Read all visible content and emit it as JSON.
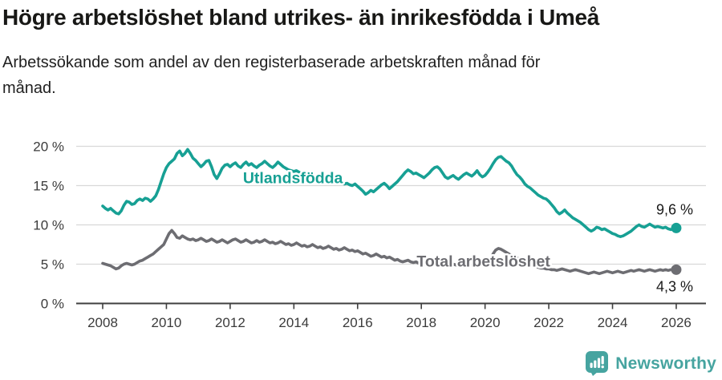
{
  "header": {
    "title": "Högre arbetslöshet bland utrikes- än inrikesfödda i Umeå",
    "subtitle_lines": [
      "Arbetssökande som andel av den registerbaserade arbetskraften månad för",
      "månad."
    ]
  },
  "chart_data": {
    "type": "line",
    "title": "Högre arbetslöshet bland utrikes- än inrikesfödda i Umeå",
    "subtitle": "Arbetssökande som andel av den registerbaserade arbetskraften månad för månad.",
    "x_unit": "month",
    "x_start_year": 2008,
    "x_end_year": 2026,
    "x_tick_years": [
      2008,
      2010,
      2012,
      2014,
      2016,
      2018,
      2020,
      2022,
      2024,
      2026
    ],
    "y_ticks": [
      0,
      5,
      10,
      15,
      20
    ],
    "y_suffix": " %",
    "ylim": [
      0,
      21.5
    ],
    "grid": "horizontal",
    "axis_color": "#3f3f3f",
    "grid_color": "#d8d8d8",
    "tick_label_color": "#3b3b3b",
    "value_label_color": "#1a1a1a",
    "series": [
      {
        "name": "Utlandsfödda",
        "color": "#17a094",
        "end_label": "9,6 %",
        "end_value": 9.6,
        "end_label_side": "above",
        "label_anchor": {
          "year": 2013.97,
          "value": 15.3
        },
        "values": [
          12.4,
          12.1,
          11.9,
          12.1,
          11.8,
          11.5,
          11.4,
          11.8,
          12.5,
          13.0,
          12.9,
          12.6,
          12.7,
          13.1,
          13.3,
          13.1,
          13.4,
          13.3,
          13.0,
          13.3,
          13.7,
          14.5,
          15.5,
          16.5,
          17.3,
          17.8,
          18.1,
          18.4,
          19.1,
          19.4,
          18.8,
          19.1,
          19.6,
          19.1,
          18.5,
          18.2,
          17.8,
          17.4,
          17.7,
          18.1,
          18.2,
          17.4,
          16.4,
          15.9,
          16.5,
          17.2,
          17.6,
          17.7,
          17.4,
          17.7,
          17.9,
          17.5,
          17.3,
          17.7,
          18.0,
          17.6,
          17.8,
          17.5,
          17.3,
          17.6,
          17.8,
          18.1,
          17.8,
          17.5,
          17.3,
          17.6,
          18.0,
          17.7,
          17.4,
          17.2,
          17.0,
          16.9,
          16.8,
          16.9,
          16.7,
          16.5,
          16.6,
          16.4,
          16.2,
          16.3,
          16.1,
          16.0,
          15.9,
          15.8,
          15.7,
          15.8,
          15.6,
          15.5,
          15.6,
          15.4,
          15.3,
          15.2,
          15.3,
          15.1,
          15.0,
          15.2,
          14.9,
          14.6,
          14.3,
          13.9,
          14.1,
          14.4,
          14.2,
          14.5,
          14.8,
          15.1,
          15.3,
          15.0,
          14.6,
          14.9,
          15.2,
          15.5,
          15.9,
          16.3,
          16.7,
          17.0,
          16.8,
          16.5,
          16.6,
          16.4,
          16.2,
          16.0,
          16.3,
          16.6,
          17.0,
          17.3,
          17.4,
          17.1,
          16.6,
          16.1,
          15.9,
          16.1,
          16.3,
          16.0,
          15.8,
          16.1,
          16.4,
          16.6,
          16.4,
          16.2,
          16.5,
          16.9,
          16.4,
          16.1,
          16.3,
          16.7,
          17.2,
          17.8,
          18.3,
          18.6,
          18.7,
          18.4,
          18.1,
          17.9,
          17.5,
          16.9,
          16.4,
          16.1,
          15.7,
          15.2,
          14.9,
          14.7,
          14.4,
          14.1,
          13.8,
          13.6,
          13.4,
          13.3,
          13.0,
          12.6,
          12.2,
          11.7,
          11.4,
          11.6,
          11.9,
          11.5,
          11.2,
          10.9,
          10.7,
          10.5,
          10.3,
          10.0,
          9.7,
          9.4,
          9.2,
          9.4,
          9.7,
          9.6,
          9.4,
          9.5,
          9.3,
          9.1,
          8.9,
          8.8,
          8.6,
          8.5,
          8.6,
          8.8,
          9.0,
          9.2,
          9.5,
          9.8,
          10.0,
          9.8,
          9.7,
          9.9,
          10.1,
          9.9,
          9.7,
          9.8,
          9.7,
          9.6,
          9.7,
          9.5,
          9.4,
          9.5,
          9.6
        ]
      },
      {
        "name": "Total arbetslöshet",
        "color": "#6d6d72",
        "end_label": "4,3 %",
        "end_value": 4.3,
        "end_label_side": "below",
        "label_anchor": {
          "year": 2019.95,
          "value": 4.7
        },
        "values": [
          5.1,
          5.0,
          4.9,
          4.8,
          4.6,
          4.4,
          4.5,
          4.8,
          5.0,
          5.1,
          5.0,
          4.9,
          5.0,
          5.2,
          5.4,
          5.5,
          5.7,
          5.9,
          6.1,
          6.3,
          6.6,
          6.9,
          7.2,
          7.5,
          8.2,
          8.9,
          9.3,
          8.9,
          8.4,
          8.3,
          8.6,
          8.4,
          8.2,
          8.1,
          8.2,
          8.0,
          8.1,
          8.3,
          8.1,
          7.9,
          8.0,
          8.2,
          8.0,
          7.8,
          7.9,
          8.1,
          7.9,
          7.7,
          7.9,
          8.1,
          8.2,
          8.0,
          7.8,
          7.9,
          8.1,
          7.9,
          7.7,
          7.8,
          8.0,
          7.8,
          7.9,
          8.1,
          7.9,
          7.7,
          7.8,
          7.6,
          7.7,
          7.9,
          7.7,
          7.5,
          7.6,
          7.4,
          7.5,
          7.7,
          7.5,
          7.3,
          7.4,
          7.2,
          7.3,
          7.5,
          7.3,
          7.1,
          7.2,
          7.0,
          7.1,
          7.3,
          7.1,
          6.9,
          7.0,
          6.8,
          6.9,
          7.1,
          6.9,
          6.7,
          6.8,
          6.6,
          6.7,
          6.5,
          6.3,
          6.4,
          6.2,
          6.0,
          6.1,
          6.3,
          6.1,
          5.9,
          6.0,
          5.8,
          5.9,
          5.7,
          5.5,
          5.6,
          5.4,
          5.3,
          5.4,
          5.5,
          5.3,
          5.2,
          5.3,
          5.1,
          5.2,
          5.0,
          4.9,
          5.0,
          4.8,
          4.9,
          5.0,
          4.9,
          4.8,
          4.9,
          5.0,
          4.9,
          5.0,
          4.9,
          4.8,
          4.9,
          5.0,
          4.9,
          4.8,
          4.9,
          5.0,
          5.1,
          5.0,
          5.1,
          5.2,
          5.3,
          5.6,
          6.3,
          6.8,
          7.0,
          6.9,
          6.7,
          6.5,
          6.3,
          6.1,
          5.9,
          5.8,
          5.6,
          5.4,
          5.2,
          5.0,
          4.9,
          4.8,
          4.7,
          4.6,
          4.5,
          4.5,
          4.4,
          4.4,
          4.3,
          4.3,
          4.2,
          4.3,
          4.4,
          4.3,
          4.2,
          4.1,
          4.2,
          4.3,
          4.2,
          4.1,
          4.0,
          3.9,
          3.8,
          3.9,
          4.0,
          3.9,
          3.8,
          3.9,
          4.0,
          4.1,
          4.0,
          3.9,
          4.0,
          4.1,
          4.0,
          3.9,
          4.0,
          4.1,
          4.2,
          4.1,
          4.2,
          4.3,
          4.2,
          4.1,
          4.2,
          4.3,
          4.2,
          4.1,
          4.2,
          4.3,
          4.2,
          4.3,
          4.2,
          4.3,
          4.3,
          4.3
        ]
      }
    ]
  },
  "footer": {
    "brand": "Newsworthy",
    "brand_color": "#46a4a0",
    "logo_icon": "bar-chart-speech-bubble-icon"
  }
}
